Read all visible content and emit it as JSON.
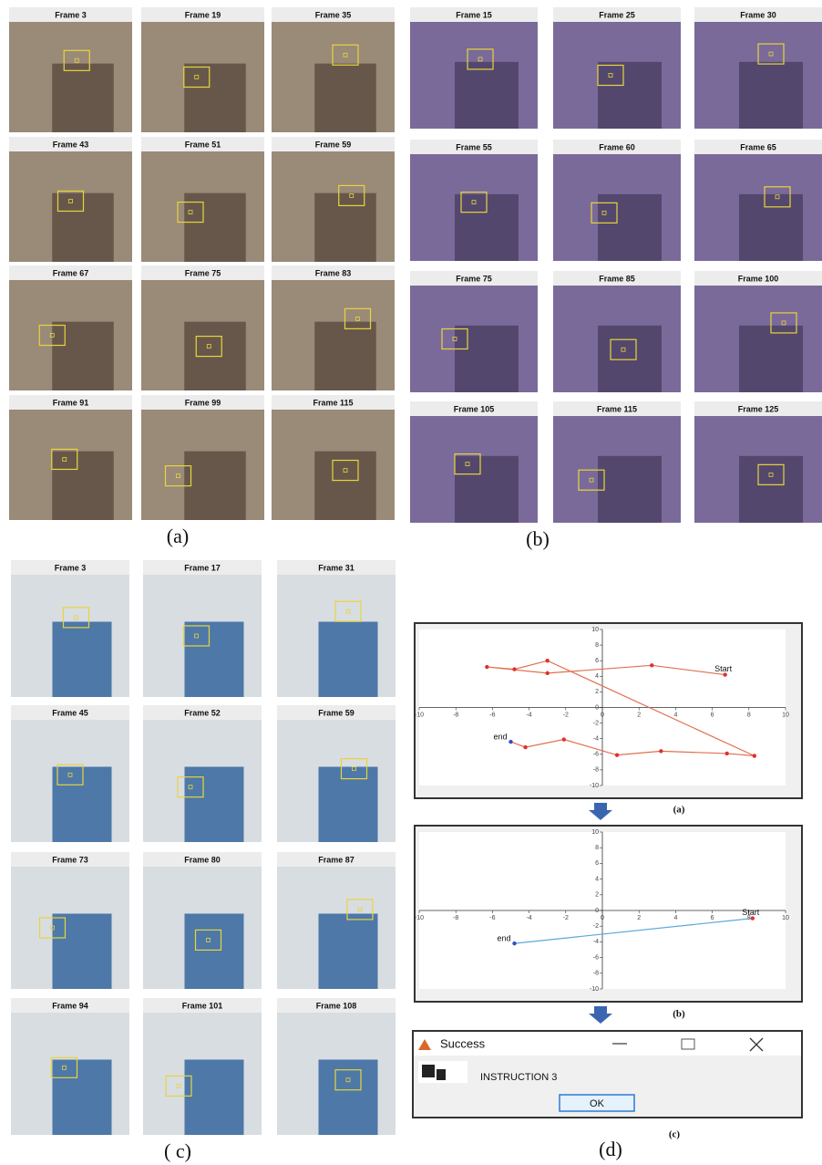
{
  "panels": [
    {
      "caption": "(a)",
      "frames": [
        "Frame 3",
        "Frame 19",
        "Frame 35",
        "Frame 43",
        "Frame 51",
        "Frame 59",
        "Frame 67",
        "Frame 75",
        "Frame 83",
        "Frame 91",
        "Frame 99",
        "Frame 115"
      ]
    },
    {
      "caption": "(b)",
      "frames": [
        "Frame 15",
        "Frame 25",
        "Frame 30",
        "Frame 55",
        "Frame 60",
        "Frame 65",
        "Frame 75",
        "Frame 85",
        "Frame 100",
        "Frame 105",
        "Frame 115",
        "Frame 125"
      ]
    },
    {
      "caption": "( c)",
      "frames": [
        "Frame 3",
        "Frame 17",
        "Frame 31",
        "Frame 45",
        "Frame 52",
        "Frame 59",
        "Frame 73",
        "Frame 80",
        "Frame 87",
        "Frame 94",
        "Frame 101",
        "Frame 108"
      ]
    }
  ],
  "trajectory": {
    "caption": "(d)",
    "plots": [
      {
        "caption": "(a)",
        "xlim": [
          -10,
          10
        ],
        "ylim": [
          -10,
          10
        ],
        "xticks": [
          -10,
          -8,
          -6,
          -4,
          -2,
          0,
          2,
          4,
          6,
          8,
          10
        ],
        "yticks": [
          -10,
          -8,
          -6,
          -4,
          -2,
          0,
          2,
          4,
          6,
          8,
          10
        ],
        "start_label": "Start",
        "end_label": "end",
        "x": [
          6.7,
          2.7,
          -3.0,
          -6.3,
          -4.8,
          -3.0,
          8.3,
          6.8,
          3.2,
          0.8,
          -2.1,
          -4.2,
          -5.0
        ],
        "y": [
          4.2,
          5.4,
          4.4,
          5.2,
          4.9,
          6.0,
          -6.2,
          -5.9,
          -5.6,
          -6.1,
          -4.1,
          -5.1,
          -4.4
        ]
      },
      {
        "caption": "(b)",
        "xlim": [
          -10,
          10
        ],
        "ylim": [
          -10,
          10
        ],
        "xticks": [
          -10,
          -8,
          -6,
          -4,
          -2,
          0,
          2,
          4,
          6,
          8,
          10
        ],
        "yticks": [
          -10,
          -8,
          -6,
          -4,
          -2,
          0,
          2,
          4,
          6,
          8,
          10
        ],
        "start_label": "Start",
        "end_label": "end",
        "x": [
          8.2,
          -4.8
        ],
        "y": [
          -1.0,
          -4.2
        ]
      }
    ],
    "dialog": {
      "caption": "(c)",
      "title": "Success",
      "message": "INSTRUCTION 3",
      "button": "OK"
    }
  }
}
